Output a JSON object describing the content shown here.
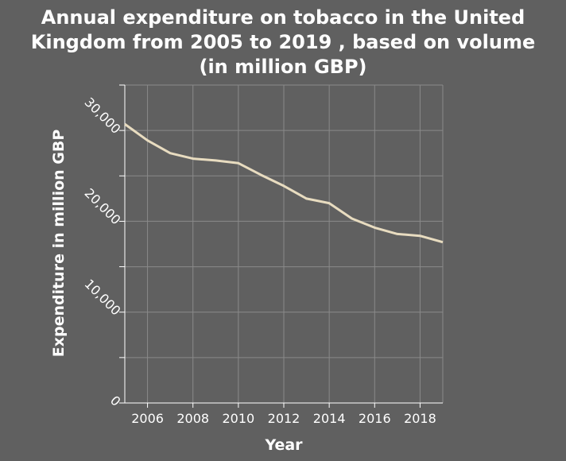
{
  "chart_data": {
    "type": "line",
    "title_lines": [
      "Annual expenditure on tobacco in the United",
      "Kingdom from 2005 to 2019 , based on volume",
      "(in million GBP)"
    ],
    "xlabel": "Year",
    "ylabel": "Expenditure in million GBP",
    "x": [
      2005,
      2006,
      2007,
      2008,
      2009,
      2010,
      2011,
      2012,
      2013,
      2014,
      2015,
      2016,
      2017,
      2018,
      2019
    ],
    "values": [
      30700,
      28900,
      27500,
      26900,
      26700,
      26400,
      25100,
      23900,
      22500,
      22000,
      20300,
      19300,
      18600,
      18400,
      17700
    ],
    "xlim": [
      2005,
      2019
    ],
    "ylim": [
      0,
      35000
    ],
    "x_ticks": [
      2006,
      2008,
      2010,
      2012,
      2014,
      2016,
      2018
    ],
    "x_tick_labels": [
      "2006",
      "2008",
      "2010",
      "2012",
      "2014",
      "2016",
      "2018"
    ],
    "y_ticks": [
      0,
      10000,
      20000,
      30000
    ],
    "y_tick_labels": [
      "0",
      "10,000",
      "20,000",
      "30,000"
    ],
    "y_minor_ticks": [
      5000,
      15000,
      25000,
      35000
    ],
    "grid": true,
    "colors": {
      "background": "#606060",
      "line": "#e8dcc0",
      "grid": "#8a8a8a",
      "text": "#ffffff"
    }
  }
}
